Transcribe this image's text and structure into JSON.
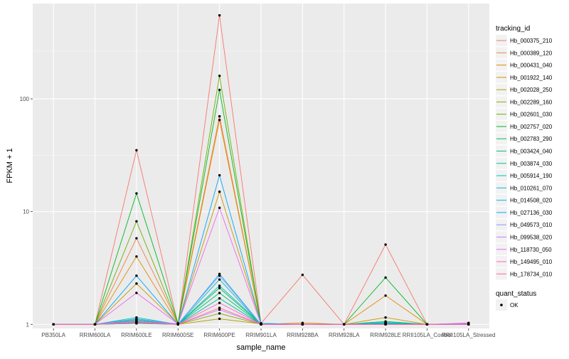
{
  "chart_data": {
    "type": "line",
    "xlabel": "sample_name",
    "ylabel": "FPKM + 1",
    "y_scale": "log10",
    "ylim": [
      0.92,
      700
    ],
    "grid": true,
    "legend_position": "right",
    "x": [
      "PB350LA",
      "RRIM600LA",
      "RRIM600LE",
      "RRIM600SE",
      "RRIM600PE",
      "RRIM901LA",
      "RRIM928BA",
      "RRIM928LA",
      "RRIM928LE",
      "RRII105LA_Control",
      "RRII105LA_Stressed"
    ],
    "y_ticks": [
      1,
      10,
      100
    ],
    "y_tick_labels": [
      "1",
      "10",
      "100"
    ],
    "legend_title": "tracking_id",
    "series": [
      {
        "name": "Hb_000375_210",
        "color": "#F8766D",
        "values": [
          1,
          1,
          35,
          1,
          550,
          1.02,
          2.75,
          1,
          5.1,
          1,
          1
        ]
      },
      {
        "name": "Hb_000389_120",
        "color": "#EE8043",
        "values": [
          1,
          1,
          5.8,
          1.02,
          70,
          1,
          1,
          1,
          1,
          1,
          1
        ]
      },
      {
        "name": "Hb_000431_040",
        "color": "#E08B00",
        "values": [
          1,
          1,
          4,
          1.01,
          65,
          1,
          1.03,
          1,
          1.8,
          1,
          1
        ]
      },
      {
        "name": "Hb_001922_140",
        "color": "#CC9600",
        "values": [
          1,
          1,
          2.3,
          1.01,
          15,
          1.02,
          1,
          1,
          1.15,
          1,
          1
        ]
      },
      {
        "name": "Hb_002028_250",
        "color": "#B3A000",
        "values": [
          1,
          1,
          1.05,
          1,
          1.12,
          1.01,
          1,
          1,
          1.02,
          1,
          1
        ]
      },
      {
        "name": "Hb_002289_160",
        "color": "#93A900",
        "values": [
          1,
          1,
          1.02,
          1,
          1.25,
          1,
          1,
          1,
          1.01,
          1,
          1.02
        ]
      },
      {
        "name": "Hb_002601_030",
        "color": "#6BB100",
        "values": [
          1,
          1,
          8.2,
          1.01,
          160,
          1,
          1,
          1,
          1.03,
          1,
          1
        ]
      },
      {
        "name": "Hb_002757_020",
        "color": "#00B81F",
        "values": [
          1,
          1,
          14.5,
          1.02,
          120,
          1.01,
          1,
          1,
          2.6,
          1,
          1
        ]
      },
      {
        "name": "Hb_002783_290",
        "color": "#00BC59",
        "values": [
          1,
          1,
          1.05,
          1,
          2.1,
          1,
          1,
          1,
          1.06,
          1,
          1
        ]
      },
      {
        "name": "Hb_003424_040",
        "color": "#00BF7D",
        "values": [
          1,
          1,
          1.02,
          1,
          1.9,
          1,
          1,
          1,
          1.04,
          1,
          1
        ]
      },
      {
        "name": "Hb_003874_030",
        "color": "#00C09B",
        "values": [
          1,
          1,
          1.08,
          1,
          1.7,
          1,
          1,
          1,
          1.01,
          1,
          1
        ]
      },
      {
        "name": "Hb_005914_190",
        "color": "#00BFB6",
        "values": [
          1,
          1,
          1.12,
          1,
          2.2,
          1.01,
          1,
          1,
          1.02,
          1,
          1
        ]
      },
      {
        "name": "Hb_010261_070",
        "color": "#00BCCE",
        "values": [
          1,
          1,
          1.15,
          1,
          2.5,
          1,
          1,
          1,
          1.03,
          1,
          1
        ]
      },
      {
        "name": "Hb_014508_020",
        "color": "#00B4E4",
        "values": [
          1,
          1,
          1.1,
          1,
          2.8,
          1,
          1,
          1,
          1.01,
          1,
          1
        ]
      },
      {
        "name": "Hb_027136_030",
        "color": "#00A8F7",
        "values": [
          1,
          1,
          2.7,
          1,
          21,
          1.02,
          1,
          1,
          1,
          1,
          1
        ]
      },
      {
        "name": "Hb_049573_010",
        "color": "#8C94FF",
        "values": [
          1,
          1,
          1.1,
          1.01,
          2.7,
          1,
          1,
          1,
          1,
          1,
          1.03
        ]
      },
      {
        "name": "Hb_099538_020",
        "color": "#C77CFF",
        "values": [
          1,
          1,
          1.03,
          1,
          1.35,
          1,
          1,
          1,
          1,
          1,
          1
        ]
      },
      {
        "name": "Hb_118730_050",
        "color": "#ED68ED",
        "values": [
          1,
          1,
          1.9,
          1.01,
          10.8,
          1,
          1,
          1,
          1,
          1,
          1.02
        ]
      },
      {
        "name": "Hb_149495_010",
        "color": "#FF61C3",
        "values": [
          1,
          1,
          1.06,
          1,
          1.55,
          1,
          1,
          1,
          1,
          1,
          1
        ]
      },
      {
        "name": "Hb_178734_010",
        "color": "#FF6A98",
        "values": [
          1,
          1,
          1.04,
          1,
          1.4,
          1,
          1,
          1,
          1,
          1,
          1.01
        ]
      }
    ],
    "point_legend_title": "quant_status",
    "point_legend_label": "OK",
    "colors": {
      "panel": "#EBEBEB",
      "grid_major": "#FFFFFF",
      "point": "#000000"
    }
  }
}
